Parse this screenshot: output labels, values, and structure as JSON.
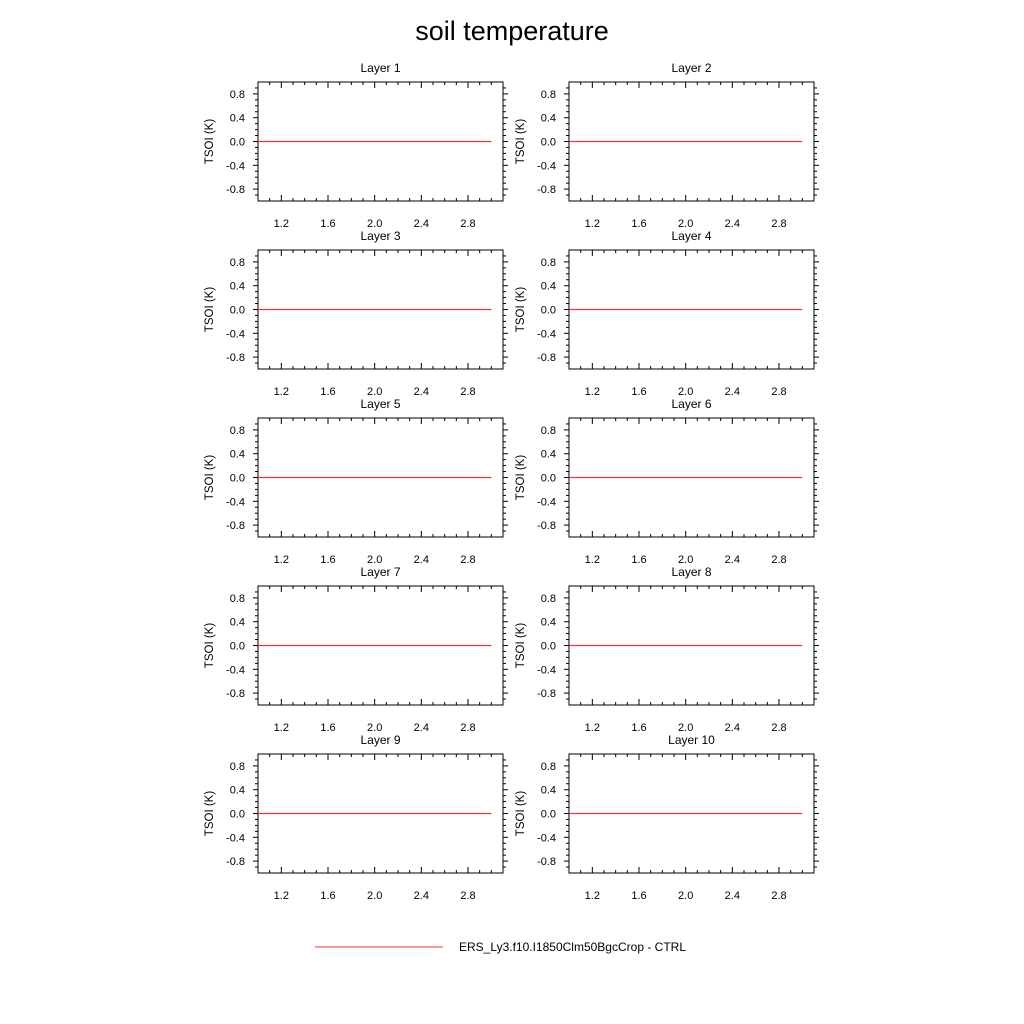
{
  "title": "soil temperature",
  "colors": {
    "series": "#e8383a",
    "frame": "#000000",
    "background": "#ffffff"
  },
  "chart_data": {
    "type": "line",
    "grid": false,
    "ylabel": "TSOI  (K)",
    "xlim": [
      1.0,
      3.1
    ],
    "ylim": [
      -1.0,
      1.0
    ],
    "xticks": [
      1.2,
      1.6,
      2.0,
      2.4,
      2.8
    ],
    "xtick_labels": [
      "1.2",
      "1.6",
      "2.0",
      "2.4",
      "2.8"
    ],
    "yticks": [
      0.8,
      0.4,
      0.0,
      -0.4,
      -0.8
    ],
    "ytick_labels": [
      "0.8",
      "0.4",
      "0.0",
      "-0.4",
      "-0.8"
    ],
    "legend": {
      "position": "bottom-center",
      "entries": [
        "ERS_Ly3.f10.I1850Clm50BgcCrop - CTRL"
      ]
    },
    "panels": [
      {
        "title": "Layer 1",
        "series": [
          {
            "name": "ERS_Ly3.f10.I1850Clm50BgcCrop - CTRL",
            "x": [
              1,
              2,
              3
            ],
            "y": [
              0,
              0,
              0
            ]
          }
        ]
      },
      {
        "title": "Layer 2",
        "series": [
          {
            "name": "ERS_Ly3.f10.I1850Clm50BgcCrop - CTRL",
            "x": [
              1,
              2,
              3
            ],
            "y": [
              0,
              0,
              0
            ]
          }
        ]
      },
      {
        "title": "Layer 3",
        "series": [
          {
            "name": "ERS_Ly3.f10.I1850Clm50BgcCrop - CTRL",
            "x": [
              1,
              2,
              3
            ],
            "y": [
              0,
              0,
              0
            ]
          }
        ]
      },
      {
        "title": "Layer 4",
        "series": [
          {
            "name": "ERS_Ly3.f10.I1850Clm50BgcCrop - CTRL",
            "x": [
              1,
              2,
              3
            ],
            "y": [
              0,
              0,
              0
            ]
          }
        ]
      },
      {
        "title": "Layer 5",
        "series": [
          {
            "name": "ERS_Ly3.f10.I1850Clm50BgcCrop - CTRL",
            "x": [
              1,
              2,
              3
            ],
            "y": [
              0,
              0,
              0
            ]
          }
        ]
      },
      {
        "title": "Layer 6",
        "series": [
          {
            "name": "ERS_Ly3.f10.I1850Clm50BgcCrop - CTRL",
            "x": [
              1,
              2,
              3
            ],
            "y": [
              0,
              0,
              0
            ]
          }
        ]
      },
      {
        "title": "Layer 7",
        "series": [
          {
            "name": "ERS_Ly3.f10.I1850Clm50BgcCrop - CTRL",
            "x": [
              1,
              2,
              3
            ],
            "y": [
              0,
              0,
              0
            ]
          }
        ]
      },
      {
        "title": "Layer 8",
        "series": [
          {
            "name": "ERS_Ly3.f10.I1850Clm50BgcCrop - CTRL",
            "x": [
              1,
              2,
              3
            ],
            "y": [
              0,
              0,
              0
            ]
          }
        ]
      },
      {
        "title": "Layer 9",
        "series": [
          {
            "name": "ERS_Ly3.f10.I1850Clm50BgcCrop - CTRL",
            "x": [
              1,
              2,
              3
            ],
            "y": [
              0,
              0,
              0
            ]
          }
        ]
      },
      {
        "title": "Layer 10",
        "series": [
          {
            "name": "ERS_Ly3.f10.I1850Clm50BgcCrop - CTRL",
            "x": [
              1,
              2,
              3
            ],
            "y": [
              0,
              0,
              0
            ]
          }
        ]
      }
    ]
  }
}
